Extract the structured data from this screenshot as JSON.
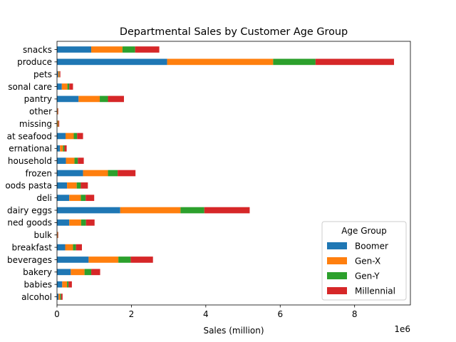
{
  "chart_data": {
    "type": "bar",
    "orientation": "horizontal",
    "stacked": true,
    "title": "Departmental Sales by Customer Age Group",
    "xlabel": "Sales (million)",
    "ylabel": "",
    "x_offset_label": "1e6",
    "xlim": [
      0,
      9500000
    ],
    "xticks": [
      0,
      2000000,
      4000000,
      6000000,
      8000000
    ],
    "xtick_labels": [
      "0",
      "2",
      "4",
      "6",
      "8"
    ],
    "grid": false,
    "legend": {
      "title": "Age Group",
      "position": "lower-right"
    },
    "categories": [
      "alcohol",
      "babies",
      "bakery",
      "beverages",
      "breakfast",
      "bulk",
      "canned goods",
      "dairy eggs",
      "deli",
      "dry goods pasta",
      "frozen",
      "household",
      "international",
      "meat seafood",
      "missing",
      "other",
      "pantry",
      "personal care",
      "pets",
      "produce",
      "snacks"
    ],
    "category_labels": [
      "alcohol",
      "babies",
      "bakery",
      "beverages",
      "breakfast",
      "bulk",
      "ned goods",
      "dairy eggs",
      "deli",
      "oods pasta",
      "frozen",
      "household",
      "ernational",
      "at seafood",
      "missing",
      "other",
      "pantry",
      "sonal care",
      "pets",
      "produce",
      "snacks"
    ],
    "series": [
      {
        "name": "Boomer",
        "color": "#1f77b4",
        "values": [
          40000,
          140000,
          370000,
          850000,
          220000,
          10000,
          330000,
          1700000,
          330000,
          270000,
          700000,
          240000,
          80000,
          230000,
          10000,
          10000,
          580000,
          130000,
          30000,
          2960000,
          920000
        ]
      },
      {
        "name": "Gen-X",
        "color": "#ff7f0e",
        "values": [
          40000,
          130000,
          370000,
          800000,
          210000,
          10000,
          320000,
          1620000,
          310000,
          260000,
          670000,
          230000,
          80000,
          220000,
          20000,
          10000,
          570000,
          150000,
          30000,
          2850000,
          840000
        ]
      },
      {
        "name": "Gen-Y",
        "color": "#2ca02c",
        "values": [
          30000,
          40000,
          180000,
          330000,
          80000,
          5000,
          130000,
          640000,
          130000,
          110000,
          260000,
          90000,
          40000,
          90000,
          10000,
          5000,
          220000,
          50000,
          10000,
          1140000,
          340000
        ]
      },
      {
        "name": "Millennial",
        "color": "#d62728",
        "values": [
          40000,
          90000,
          240000,
          600000,
          160000,
          10000,
          230000,
          1220000,
          230000,
          190000,
          480000,
          160000,
          60000,
          160000,
          20000,
          10000,
          430000,
          100000,
          20000,
          2110000,
          650000
        ]
      }
    ]
  }
}
